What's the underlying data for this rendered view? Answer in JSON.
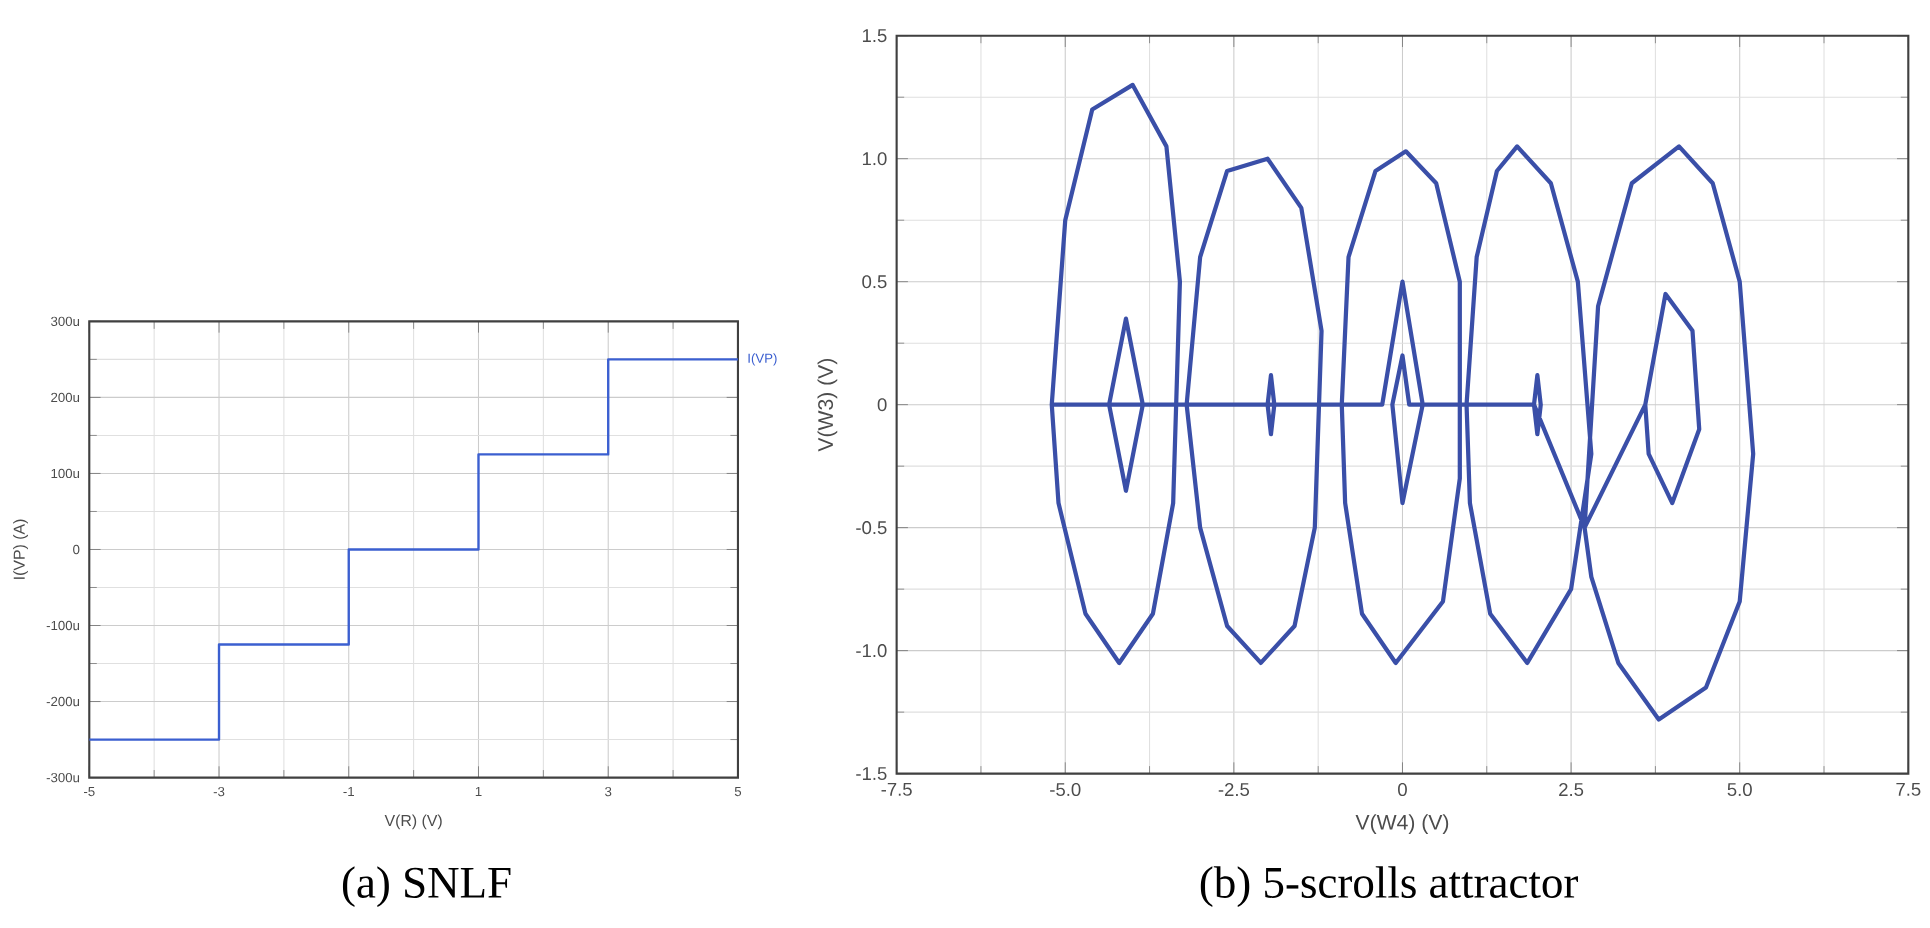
{
  "chart_data": [
    {
      "type": "step",
      "title": "(a) SNLF",
      "xlabel": "V(R) (V)",
      "ylabel": "I(VP) (A)",
      "xlim": [
        -5,
        5
      ],
      "xticks": [
        -5,
        -3,
        -1,
        1,
        3,
        5
      ],
      "ylim": [
        -300,
        300
      ],
      "yticks": [
        {
          "value": -300,
          "label": "-300u"
        },
        {
          "value": -200,
          "label": "-200u"
        },
        {
          "value": -100,
          "label": "-100u"
        },
        0,
        {
          "value": 100,
          "label": "100u"
        },
        {
          "value": 200,
          "label": "200u"
        },
        {
          "value": 300,
          "label": "300u"
        }
      ],
      "grid": true,
      "legend": false,
      "series": [
        {
          "name": "I(VP)",
          "color": "#3b5fd0",
          "x": [
            -5,
            -3,
            -1,
            1,
            3,
            5
          ],
          "values": [
            -250,
            -125,
            0,
            125,
            250,
            250
          ]
        }
      ]
    },
    {
      "type": "line",
      "title": "(b) 5-scrolls attractor",
      "xlabel": "V(W4) (V)",
      "ylabel": "V(W3) (V)",
      "xlim": [
        -7.5,
        7.5
      ],
      "xticks": [
        {
          "value": -7.5,
          "label": "-7.5"
        },
        {
          "value": -5,
          "label": "-5.0"
        },
        {
          "value": -2.5,
          "label": "-2.5"
        },
        0,
        {
          "value": 2.5,
          "label": "2.5"
        },
        {
          "value": 5,
          "label": "5.0"
        },
        {
          "value": 7.5,
          "label": "7.5"
        }
      ],
      "ylim": [
        -1.5,
        1.5
      ],
      "yticks": [
        -1.5,
        {
          "value": -1,
          "label": "-1.0"
        },
        -0.5,
        0,
        0.5,
        {
          "value": 1,
          "label": "1.0"
        },
        1.5
      ],
      "grid": true,
      "legend": false,
      "series": [
        {
          "color": "#3a4fa8",
          "x": [
            -5.2,
            -5.0,
            -4.6,
            -4.0,
            -3.5,
            -3.3,
            -3.4,
            -3.7,
            -4.2,
            -4.7,
            -5.1,
            -5.2,
            -4.35,
            -4.1,
            -3.85,
            -4.1,
            -4.35,
            -3.2,
            -3.0,
            -2.6,
            -2.0,
            -1.5,
            -1.2,
            -1.3,
            -1.6,
            -2.1,
            -2.6,
            -3.0,
            -3.2,
            -2.0,
            -1.95,
            -1.9,
            -1.95,
            -2.0,
            -0.9,
            -0.8,
            -0.4,
            0.05,
            0.5,
            0.85,
            0.85,
            0.6,
            -0.1,
            -0.6,
            -0.85,
            -0.9,
            -0.3,
            0,
            0.3,
            0,
            -0.15,
            0,
            0.1,
            0.95,
            1.1,
            1.4,
            1.7,
            2.2,
            2.6,
            2.8,
            2.5,
            1.85,
            1.3,
            1.0,
            0.95,
            1.95,
            2.0,
            2.05,
            2.0,
            1.95,
            2.7,
            2.9,
            3.4,
            4.1,
            4.6,
            5.0,
            5.2,
            5.0,
            4.5,
            3.8,
            3.2,
            2.8,
            2.7,
            3.6,
            3.9,
            4.3,
            4.4,
            4.0,
            3.65,
            3.6
          ],
          "values": [
            0,
            0.75,
            1.2,
            1.3,
            1.05,
            0.5,
            -0.4,
            -0.85,
            -1.05,
            -0.85,
            -0.4,
            0,
            0,
            0.35,
            0,
            -0.35,
            0,
            0,
            0.6,
            0.95,
            1.0,
            0.8,
            0.3,
            -0.5,
            -0.9,
            -1.05,
            -0.9,
            -0.5,
            0,
            0,
            0.12,
            0,
            -0.12,
            0,
            0,
            0.6,
            0.95,
            1.03,
            0.9,
            0.5,
            -0.3,
            -0.8,
            -1.05,
            -0.85,
            -0.4,
            0,
            0,
            0.5,
            0,
            -0.4,
            0,
            0.2,
            0,
            0,
            0.6,
            0.95,
            1.05,
            0.9,
            0.5,
            -0.2,
            -0.75,
            -1.05,
            -0.85,
            -0.4,
            0,
            0,
            0.12,
            0,
            -0.12,
            0,
            -0.5,
            0.4,
            0.9,
            1.05,
            0.9,
            0.5,
            -0.2,
            -0.8,
            -1.15,
            -1.28,
            -1.05,
            -0.7,
            -0.5,
            0,
            0.45,
            0.3,
            -0.1,
            -0.4,
            -0.2,
            0
          ]
        }
      ]
    }
  ]
}
